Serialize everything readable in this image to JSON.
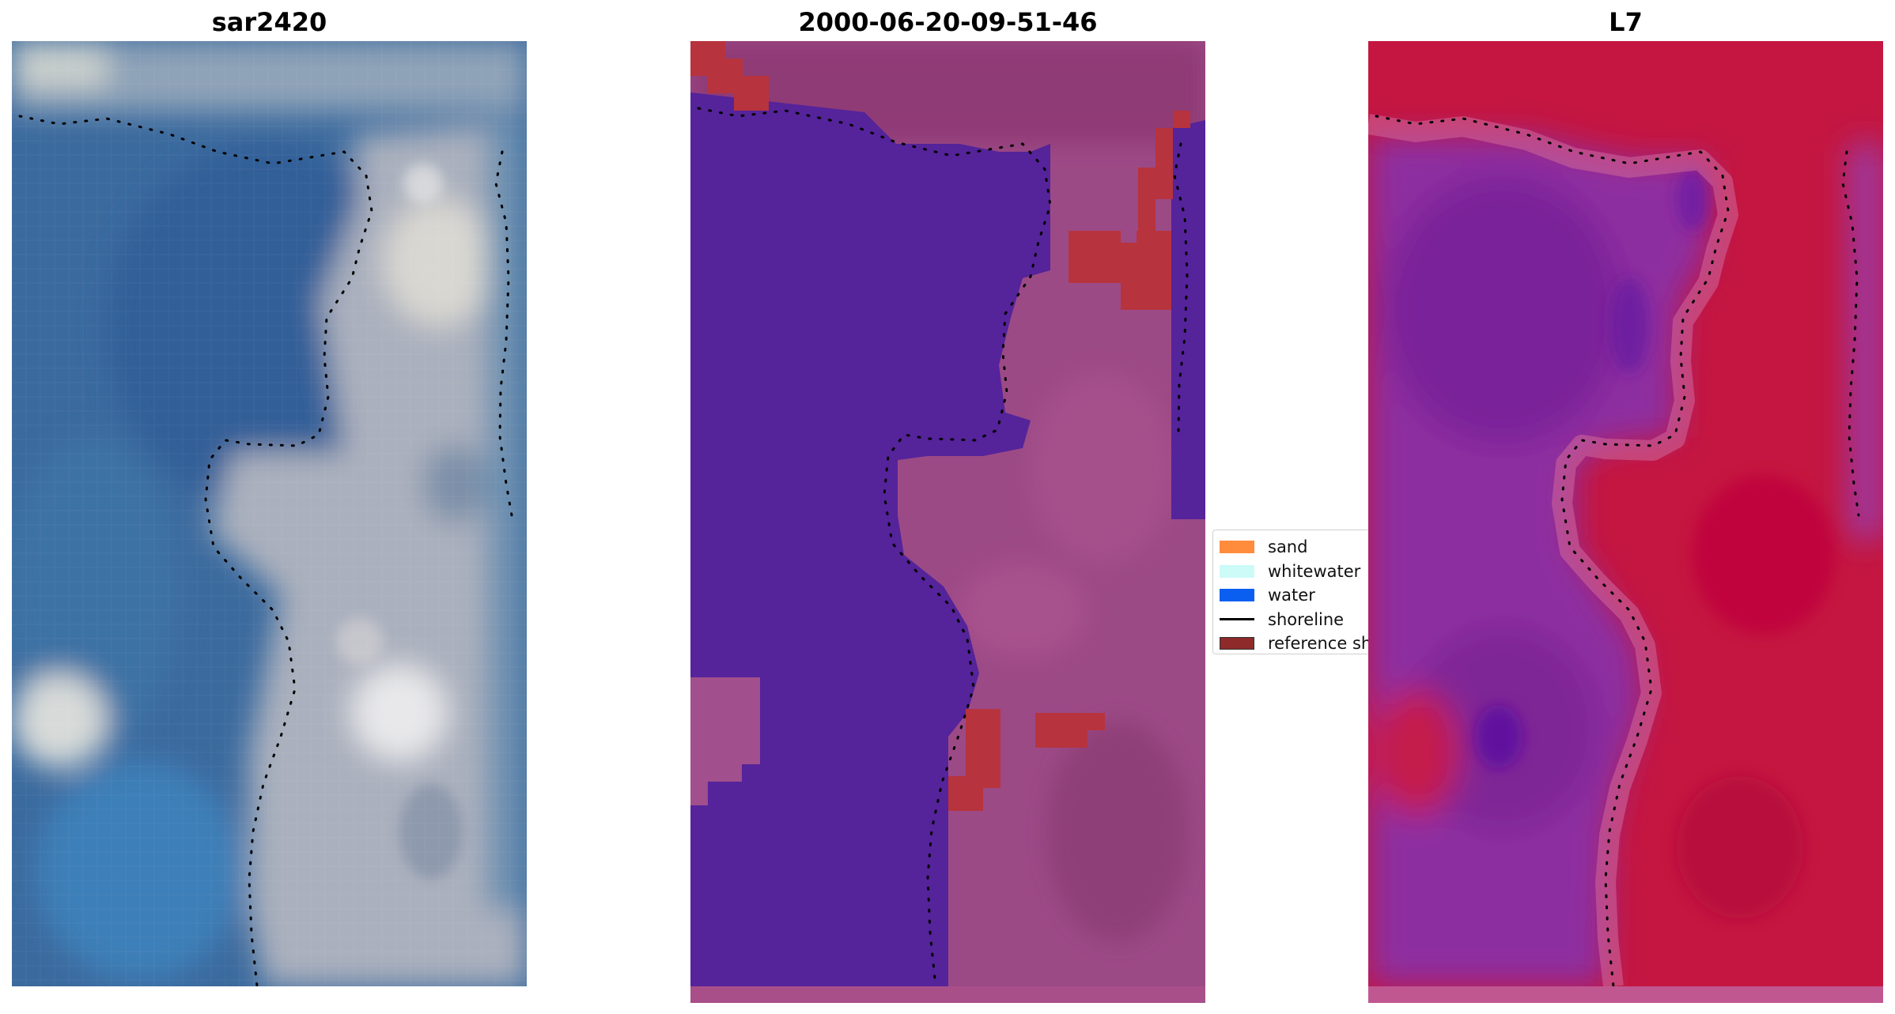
{
  "panels": {
    "rgb": {
      "title": "sar2420"
    },
    "class": {
      "title": "2000-06-20-09-51-46"
    },
    "mndwi": {
      "title": "L7"
    }
  },
  "legend": {
    "items": [
      {
        "label": "sand",
        "color": "#ff8c3c",
        "kind": "patch"
      },
      {
        "label": "whitewater",
        "color": "#ccfbf8",
        "kind": "patch"
      },
      {
        "label": "water",
        "color": "#0a5ff0",
        "kind": "patch"
      },
      {
        "label": "shoreline",
        "color": "#000000",
        "kind": "line"
      },
      {
        "label": "reference sh",
        "color": "#8e2a2a",
        "kind": "patch"
      }
    ]
  },
  "colors": {
    "water_class": "#55239a",
    "land_class": "#9c4a86",
    "sand_class": "#b7333d",
    "mndwi_high": "#c41640",
    "mndwi_low": "#8d2fa0",
    "rgb_water": "#3f6ea0",
    "rgb_land": "#b7b9c2"
  }
}
